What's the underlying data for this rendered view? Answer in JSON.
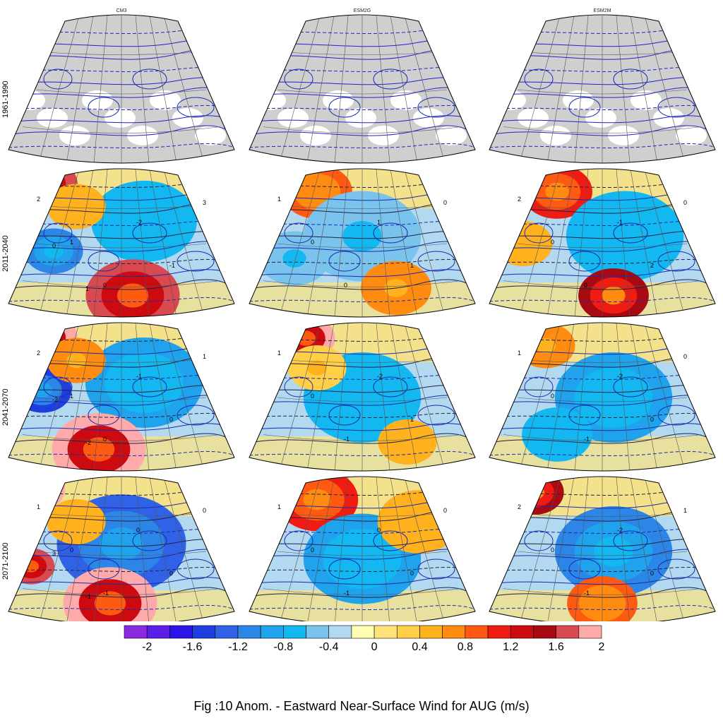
{
  "figure": {
    "caption": "Fig :10  Anom.  - Eastward Near-Surface Wind for AUG (m/s)"
  },
  "chart_data": {
    "type": "heatmap",
    "columns": [
      "CM3",
      "ESM2G",
      "ESM2M"
    ],
    "rows": [
      "1961-1990",
      "2011-2040",
      "2041-2070",
      "2071-2100"
    ],
    "baseline_row": "1961-1990",
    "colorbar": {
      "ticks": [
        "-2",
        "-1.6",
        "-1.2",
        "-0.8",
        "-0.4",
        "0",
        "0.4",
        "0.8",
        "1.2",
        "1.6",
        "2"
      ],
      "colors": [
        "#8a2be2",
        "#5a1ee6",
        "#2b14e8",
        "#1f3ee0",
        "#2f62e6",
        "#2c86e8",
        "#1fa3ec",
        "#13b8f0",
        "#79c3ec",
        "#b2d9f0",
        "#ffffb2",
        "#ffe27a",
        "#ffcf48",
        "#ffb21e",
        "#ff8c10",
        "#ff5a12",
        "#f01b12",
        "#cc0a10",
        "#a80a14",
        "#d84a50",
        "#ffaaaa"
      ]
    },
    "panels": [
      {
        "col": 0,
        "row": 1,
        "blobs": [
          [
            0.15,
            0.1,
            0.12,
            1.8
          ],
          [
            0.6,
            0.35,
            0.18,
            -0.6
          ],
          [
            0.2,
            0.55,
            0.1,
            -1.0
          ],
          [
            0.55,
            0.85,
            0.16,
            1.8
          ],
          [
            0.3,
            0.25,
            0.1,
            0.6
          ]
        ],
        "labels": [
          "2",
          "1",
          "0",
          "-2",
          "-1",
          "3",
          "0",
          "1"
        ]
      },
      {
        "col": 1,
        "row": 1,
        "blobs": [
          [
            0.3,
            0.15,
            0.12,
            1.0
          ],
          [
            0.5,
            0.45,
            0.2,
            -0.4
          ],
          [
            0.65,
            0.8,
            0.12,
            0.8
          ],
          [
            0.2,
            0.6,
            0.12,
            -0.4
          ]
        ],
        "labels": [
          "1",
          "0",
          "0",
          "1",
          "1",
          "0"
        ]
      },
      {
        "col": 2,
        "row": 1,
        "blobs": [
          [
            0.3,
            0.15,
            0.12,
            1.2
          ],
          [
            0.6,
            0.45,
            0.2,
            -0.6
          ],
          [
            0.55,
            0.85,
            0.12,
            1.6
          ],
          [
            0.15,
            0.5,
            0.1,
            0.6
          ]
        ],
        "labels": [
          "2",
          "0",
          "0",
          "-1",
          "2",
          "0"
        ]
      },
      {
        "col": 0,
        "row": 2,
        "blobs": [
          [
            0.15,
            0.1,
            0.12,
            2.0
          ],
          [
            0.6,
            0.4,
            0.2,
            -0.8
          ],
          [
            0.15,
            0.45,
            0.1,
            -1.4
          ],
          [
            0.4,
            0.85,
            0.16,
            2.0
          ],
          [
            0.3,
            0.25,
            0.1,
            0.8
          ]
        ],
        "labels": [
          "2",
          "1",
          "0",
          "-1",
          "0",
          "1",
          "-2",
          "-2"
        ]
      },
      {
        "col": 1,
        "row": 2,
        "blobs": [
          [
            0.25,
            0.1,
            0.1,
            2.0
          ],
          [
            0.5,
            0.5,
            0.2,
            -0.6
          ],
          [
            0.3,
            0.3,
            0.1,
            0.4
          ],
          [
            0.7,
            0.8,
            0.1,
            0.6
          ]
        ],
        "labels": [
          "1",
          "0",
          "-1",
          "-2",
          "1"
        ]
      },
      {
        "col": 2,
        "row": 2,
        "blobs": [
          [
            0.25,
            0.15,
            0.1,
            0.8
          ],
          [
            0.55,
            0.5,
            0.2,
            -0.8
          ],
          [
            0.3,
            0.75,
            0.12,
            -0.6
          ]
        ],
        "labels": [
          "1",
          "0",
          "-1",
          "-2",
          "0",
          "0"
        ]
      },
      {
        "col": 0,
        "row": 3,
        "blobs": [
          [
            0.12,
            0.08,
            0.1,
            2.2
          ],
          [
            0.5,
            0.45,
            0.22,
            -1.2
          ],
          [
            0.1,
            0.6,
            0.08,
            1.8
          ],
          [
            0.45,
            0.85,
            0.16,
            2.0
          ],
          [
            0.3,
            0.3,
            0.1,
            0.6
          ]
        ],
        "labels": [
          "1",
          "0",
          "-1",
          "0",
          "0",
          "0",
          "3",
          "-1"
        ]
      },
      {
        "col": 1,
        "row": 3,
        "blobs": [
          [
            0.3,
            0.15,
            0.14,
            1.2
          ],
          [
            0.5,
            0.55,
            0.2,
            -0.8
          ],
          [
            0.75,
            0.3,
            0.14,
            0.6
          ]
        ],
        "labels": [
          "1",
          "0",
          "-1",
          "0",
          "0",
          "0"
        ]
      },
      {
        "col": 2,
        "row": 3,
        "blobs": [
          [
            0.2,
            0.1,
            0.1,
            1.6
          ],
          [
            0.55,
            0.5,
            0.2,
            -1.0
          ],
          [
            0.5,
            0.85,
            0.12,
            1.0
          ]
        ],
        "labels": [
          "2",
          "0",
          "-1",
          "-2",
          "0",
          "1"
        ]
      }
    ]
  }
}
